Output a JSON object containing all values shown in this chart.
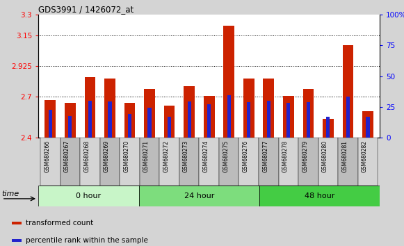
{
  "title": "GDS3991 / 1426072_at",
  "samples": [
    "GSM680266",
    "GSM680267",
    "GSM680268",
    "GSM680269",
    "GSM680270",
    "GSM680271",
    "GSM680272",
    "GSM680273",
    "GSM680274",
    "GSM680275",
    "GSM680276",
    "GSM680277",
    "GSM680278",
    "GSM680279",
    "GSM680280",
    "GSM680281",
    "GSM680282"
  ],
  "red_values": [
    2.675,
    2.655,
    2.845,
    2.835,
    2.655,
    2.755,
    2.635,
    2.775,
    2.705,
    3.22,
    2.835,
    2.835,
    2.705,
    2.755,
    2.54,
    3.075,
    2.595
  ],
  "blue_values": [
    2.605,
    2.56,
    2.67,
    2.665,
    2.575,
    2.62,
    2.555,
    2.665,
    2.645,
    2.71,
    2.66,
    2.67,
    2.655,
    2.66,
    2.555,
    2.7,
    2.555
  ],
  "ylim_left": [
    2.4,
    3.3
  ],
  "yticks_left": [
    2.4,
    2.7,
    2.925,
    3.15,
    3.3
  ],
  "ytick_labels_left": [
    "2.4",
    "2.7",
    "2.925",
    "3.15",
    "3.3"
  ],
  "yticks_right": [
    0,
    25,
    50,
    75,
    100
  ],
  "ytick_labels_right": [
    "0",
    "25",
    "50",
    "75",
    "100%"
  ],
  "hlines": [
    2.7,
    2.925,
    3.15
  ],
  "groups": [
    {
      "label": "0 hour",
      "start": 0,
      "end": 5,
      "color": "#c8f5c8"
    },
    {
      "label": "24 hour",
      "start": 5,
      "end": 11,
      "color": "#7ddd7d"
    },
    {
      "label": "48 hour",
      "start": 11,
      "end": 17,
      "color": "#44cc44"
    }
  ],
  "red_color": "#cc2200",
  "blue_color": "#2222cc",
  "background_color": "#d4d4d4",
  "plot_bg_color": "#ffffff",
  "legend_items": [
    "transformed count",
    "percentile rank within the sample"
  ],
  "base": 2.4,
  "bar_width": 0.55,
  "blue_bar_width": 0.18
}
